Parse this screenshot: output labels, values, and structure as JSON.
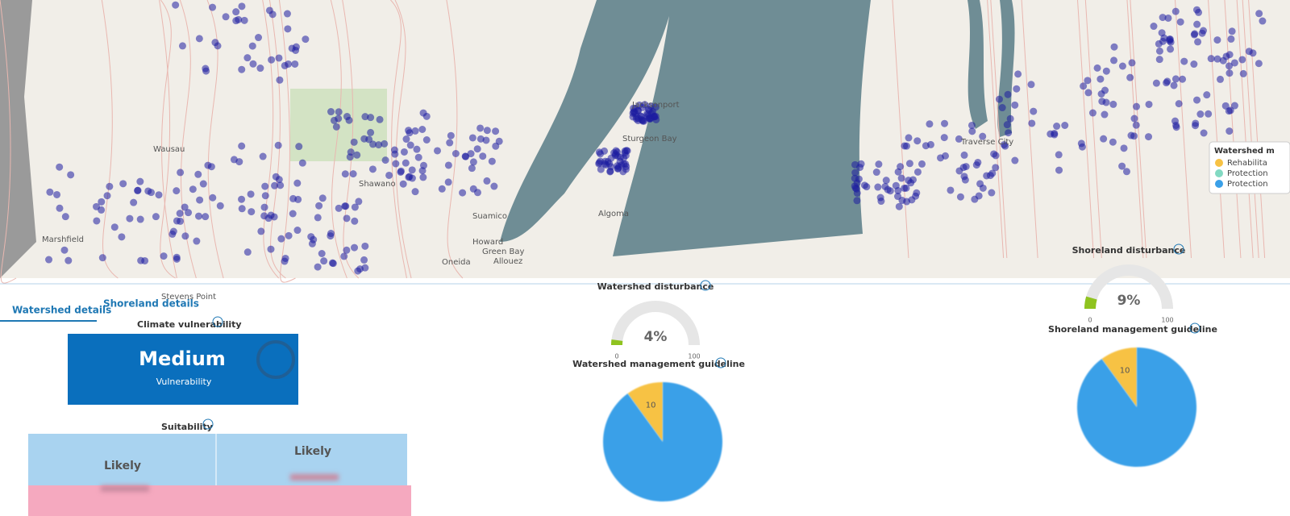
{
  "map": {
    "places": [
      "Wausau",
      "Marshfield",
      "Stevens Point",
      "Shawano",
      "Green Bay",
      "Howard",
      "Oneida",
      "Allouez",
      "Suamico",
      "Sturgeon Bay",
      "Jacksonport",
      "Algoma",
      "Traverse City"
    ],
    "legend": {
      "title": "Watershed m",
      "items": [
        {
          "label": "Rehabilita",
          "color": "#f7c244"
        },
        {
          "label": "Protection",
          "color": "#82d9c2"
        },
        {
          "label": "Protection",
          "color": "#3aa0e8"
        }
      ]
    }
  },
  "tabs": [
    "Watershed details",
    "Shoreland details"
  ],
  "climate_vulnerability": {
    "title": "Climate vulnerability",
    "level": "Medium",
    "caption": "Vulnerability"
  },
  "suitability": {
    "title": "Suitability",
    "headers": [
      "Likely",
      "Likely"
    ]
  },
  "watershed": {
    "disturbance": {
      "title": "Watershed disturbance",
      "value": 4,
      "value_label": "4%",
      "min": 0,
      "max": 100,
      "color": "#8fc31f"
    },
    "guideline": {
      "title": "Watershed management guideline",
      "type": "pie",
      "values": [
        10,
        90
      ],
      "colors": [
        "#f7c244",
        "#3aa0e8"
      ]
    }
  },
  "shoreland": {
    "disturbance": {
      "title": "Shoreland disturbance",
      "value": 9,
      "value_label": "9%",
      "min": 0,
      "max": 100,
      "color": "#8fc31f"
    },
    "guideline": {
      "title": "Shoreland management guideline",
      "type": "pie",
      "values": [
        10,
        90
      ],
      "colors": [
        "#f7c244",
        "#3aa0e8"
      ]
    }
  }
}
